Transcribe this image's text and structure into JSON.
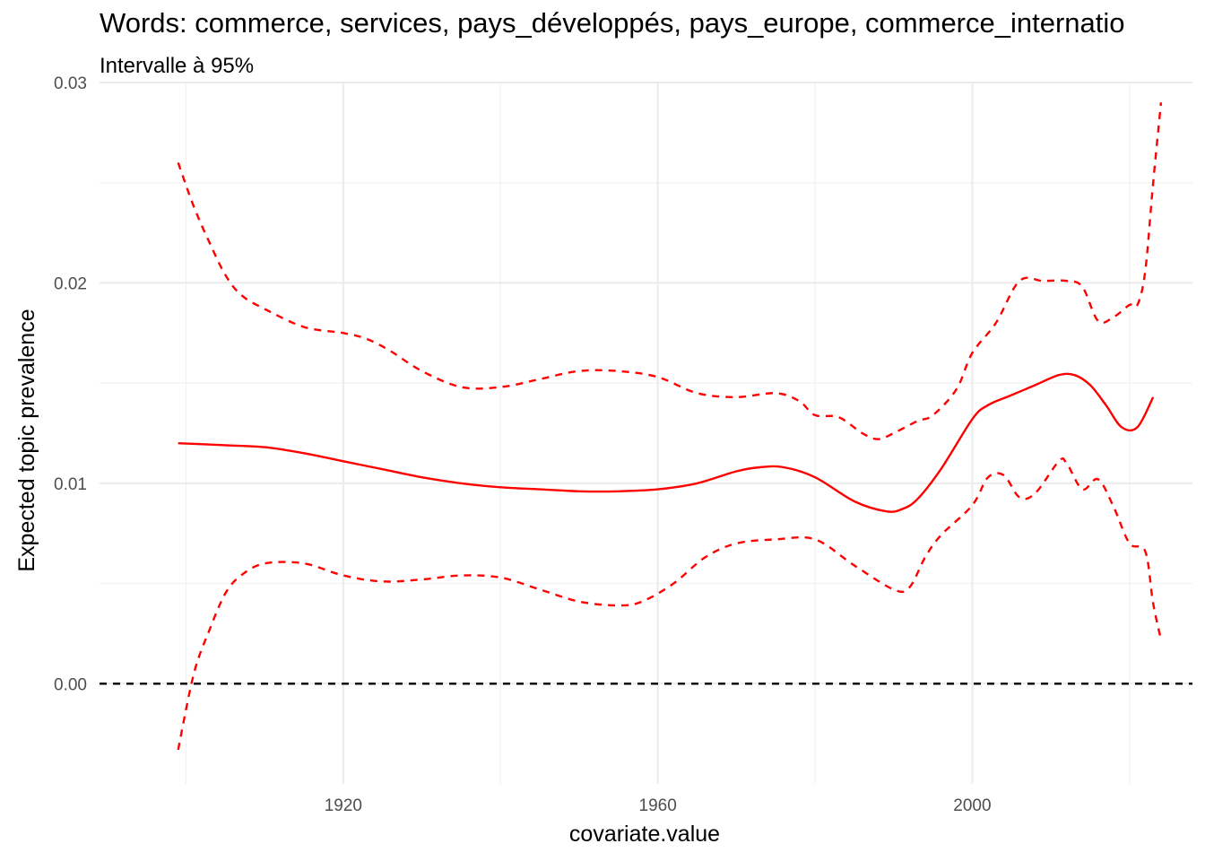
{
  "chart_data": {
    "type": "line",
    "title": "Words: commerce, services, pays_développés, pays_europe, commerce_internatio",
    "subtitle": "Intervalle à 95%",
    "xlabel": "covariate.value",
    "ylabel": "Expected topic prevalence",
    "xlim": [
      1889,
      2028
    ],
    "ylim": [
      -0.005,
      0.03
    ],
    "x_ticks": [
      1920,
      1960,
      2000
    ],
    "x_tick_labels": [
      "1920",
      "1960",
      "2000"
    ],
    "y_ticks": [
      0,
      0.01,
      0.02,
      0.03
    ],
    "y_tick_labels": [
      "0.00",
      "0.01",
      "0.02",
      "0.03"
    ],
    "grid": true,
    "reference_line": {
      "y": 0,
      "style": "dashed",
      "color": "#000000"
    },
    "series": [
      {
        "role": "estimate",
        "style": "solid",
        "color": "#ff0000",
        "x": [
          1899,
          1905,
          1910,
          1915,
          1920,
          1925,
          1930,
          1935,
          1940,
          1945,
          1950,
          1955,
          1960,
          1965,
          1970,
          1973,
          1976,
          1980,
          1985,
          1989,
          1991,
          1993,
          1996,
          2000,
          2002,
          2005,
          2008,
          2011,
          2013,
          2015,
          2017,
          2019,
          2021,
          2023
        ],
        "y": [
          0.012,
          0.0119,
          0.0118,
          0.0115,
          0.0111,
          0.0107,
          0.0103,
          0.01,
          0.0098,
          0.0097,
          0.0096,
          0.0096,
          0.0097,
          0.01,
          0.0106,
          0.0108,
          0.0108,
          0.0103,
          0.0091,
          0.0086,
          0.0087,
          0.0092,
          0.0107,
          0.0132,
          0.0139,
          0.0144,
          0.0149,
          0.0154,
          0.0154,
          0.0149,
          0.0139,
          0.0128,
          0.0128,
          0.0143
        ]
      },
      {
        "role": "upper_ci",
        "style": "dashed",
        "color": "#ff0000",
        "x": [
          1899,
          1901,
          1903,
          1905,
          1907,
          1910,
          1915,
          1920,
          1923,
          1926,
          1930,
          1935,
          1940,
          1945,
          1950,
          1955,
          1960,
          1965,
          1970,
          1975,
          1978,
          1980,
          1983,
          1986,
          1988,
          1990,
          1993,
          1995,
          1998,
          2000,
          2003,
          2006,
          2009,
          2012,
          2014,
          2016,
          2018,
          2020,
          2021,
          2022,
          2023,
          2024
        ],
        "y": [
          0.026,
          0.0238,
          0.022,
          0.0204,
          0.0194,
          0.0187,
          0.0178,
          0.0175,
          0.0172,
          0.0166,
          0.0156,
          0.0148,
          0.0148,
          0.0152,
          0.0156,
          0.0156,
          0.0153,
          0.0145,
          0.0143,
          0.0145,
          0.0141,
          0.0134,
          0.0133,
          0.0125,
          0.0122,
          0.0125,
          0.0131,
          0.0134,
          0.0147,
          0.0165,
          0.018,
          0.0201,
          0.0201,
          0.0201,
          0.0198,
          0.0181,
          0.0183,
          0.0189,
          0.0189,
          0.0206,
          0.025,
          0.029
        ]
      },
      {
        "role": "lower_ci",
        "style": "dashed",
        "color": "#ff0000",
        "x": [
          1899,
          1901,
          1903,
          1905,
          1907,
          1910,
          1915,
          1920,
          1925,
          1930,
          1935,
          1940,
          1945,
          1950,
          1955,
          1958,
          1962,
          1966,
          1970,
          1975,
          1980,
          1985,
          1990,
          1992,
          1994,
          1996,
          2000,
          2002,
          2004,
          2006,
          2008,
          2011,
          2012,
          2014,
          2016,
          2018,
          2020,
          2022,
          2023,
          2024
        ],
        "y": [
          -0.0033,
          0.0005,
          0.0027,
          0.0045,
          0.0054,
          0.006,
          0.006,
          0.0054,
          0.0051,
          0.0052,
          0.0054,
          0.0053,
          0.0047,
          0.0041,
          0.0039,
          0.0041,
          0.005,
          0.0063,
          0.007,
          0.0072,
          0.0072,
          0.0059,
          0.0047,
          0.0048,
          0.0063,
          0.0074,
          0.0089,
          0.0103,
          0.0104,
          0.0093,
          0.0095,
          0.0111,
          0.011,
          0.0097,
          0.0102,
          0.0088,
          0.007,
          0.0066,
          0.004,
          0.0022
        ]
      }
    ]
  }
}
